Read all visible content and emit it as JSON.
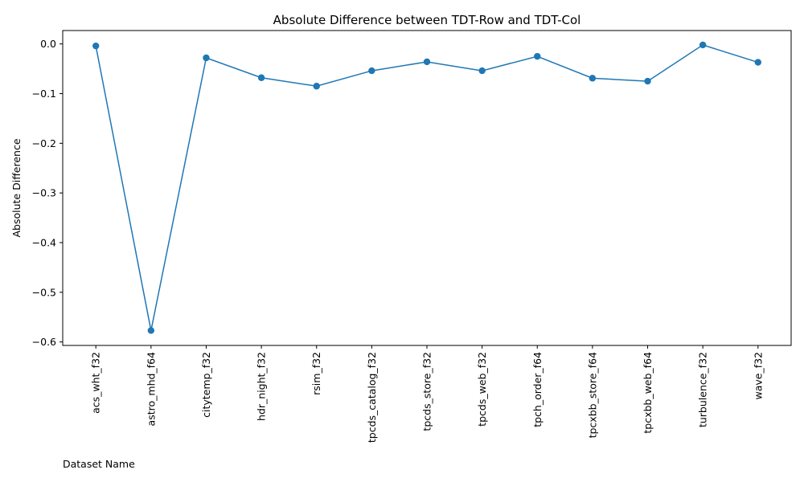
{
  "chart_data": {
    "type": "line",
    "title": "Absolute Difference between TDT-Row and TDT-Col",
    "xlabel": "Dataset Name",
    "ylabel": "Absolute Difference",
    "ylim": [
      -0.607,
      0.027
    ],
    "yticks": [
      0.0,
      -0.1,
      -0.2,
      -0.3,
      -0.4,
      -0.5,
      -0.6
    ],
    "ytick_labels": [
      "0.0",
      "−0.1",
      "−0.2",
      "−0.3",
      "−0.4",
      "−0.5",
      "−0.6"
    ],
    "grid": false,
    "categories": [
      "acs_wht_f32",
      "astro_mhd_f64",
      "citytemp_f32",
      "hdr_night_f32",
      "rsim_f32",
      "tpcds_catalog_f32",
      "tpcds_store_f32",
      "tpcds_web_f32",
      "tpch_order_f64",
      "tpcxbb_store_f64",
      "tpcxbb_web_f64",
      "turbulence_f32",
      "wave_f32"
    ],
    "series": [
      {
        "color": "#1f77b4",
        "marker": "circle",
        "values": [
          -0.004,
          -0.577,
          -0.028,
          -0.068,
          -0.085,
          -0.054,
          -0.036,
          -0.054,
          -0.025,
          -0.069,
          -0.075,
          -0.002,
          -0.037
        ]
      }
    ]
  }
}
